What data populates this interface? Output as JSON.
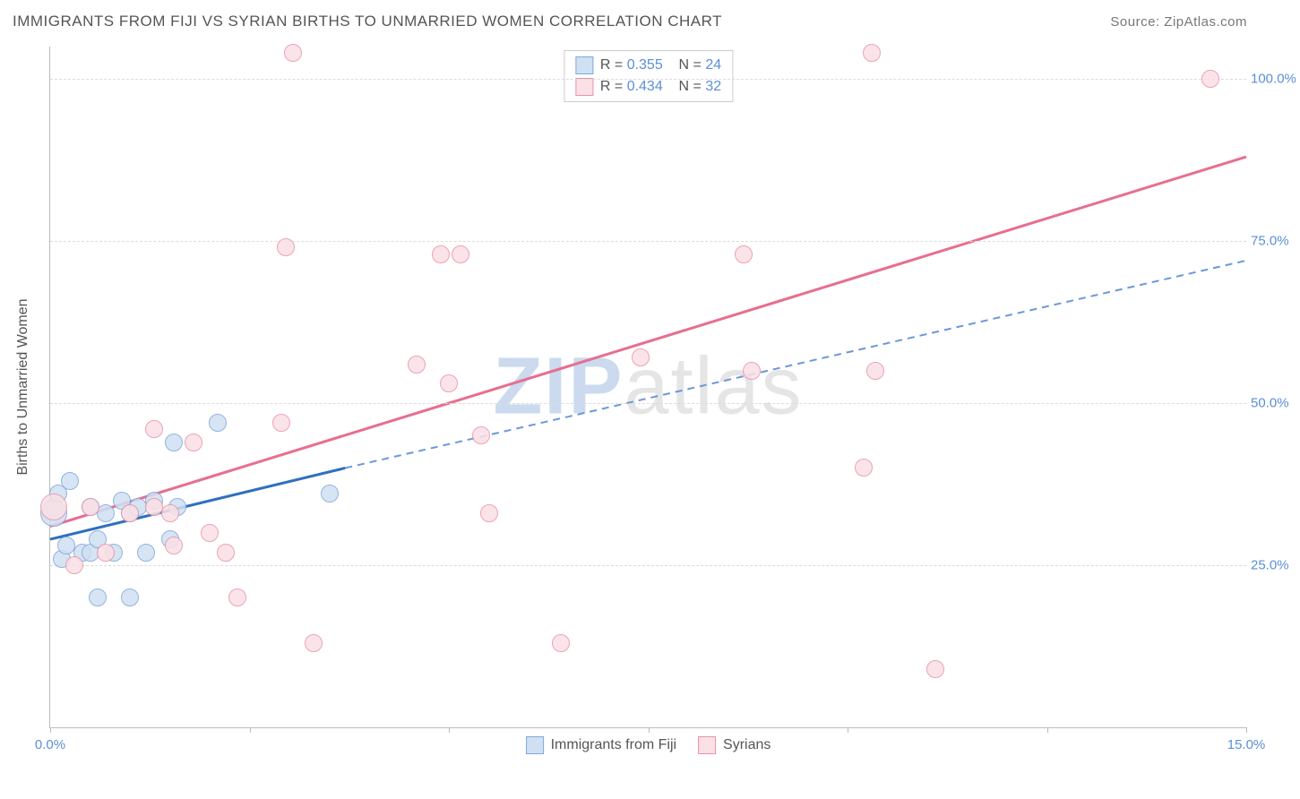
{
  "header": {
    "title": "IMMIGRANTS FROM FIJI VS SYRIAN BIRTHS TO UNMARRIED WOMEN CORRELATION CHART",
    "source_label": "Source:",
    "source_site": "ZipAtlas.com"
  },
  "watermark": {
    "part1": "ZIP",
    "part2": "atlas"
  },
  "axes": {
    "x": {
      "min": 0,
      "max": 15,
      "ticks": [
        0,
        2.5,
        5,
        7.5,
        10,
        12.5,
        15
      ],
      "labels": {
        "0": "0.0%",
        "15": "15.0%"
      }
    },
    "y": {
      "title": "Births to Unmarried Women",
      "min": 0,
      "max": 105,
      "gridlines": [
        25,
        50,
        75,
        100
      ],
      "labels": {
        "25": "25.0%",
        "50": "50.0%",
        "75": "75.0%",
        "100": "100.0%"
      }
    }
  },
  "series": [
    {
      "id": "fiji",
      "name": "Immigrants from Fiji",
      "R": "0.355",
      "N": "24",
      "marker_fill": "#cfe0f3",
      "marker_stroke": "#7fa8d9",
      "marker_radius": 9,
      "marker_opacity": 0.85,
      "trend": {
        "solid": {
          "x1": 0,
          "y1": 29,
          "x2": 3.7,
          "y2": 40,
          "color": "#2f6fc0",
          "width": 3
        },
        "dashed": {
          "x1": 3.7,
          "y1": 40,
          "x2": 15,
          "y2": 72,
          "color": "#6b99d6",
          "width": 2,
          "dash": "8 6"
        }
      },
      "points": [
        {
          "x": 0.05,
          "y": 34
        },
        {
          "x": 0.05,
          "y": 33,
          "r": 14
        },
        {
          "x": 0.1,
          "y": 36
        },
        {
          "x": 0.15,
          "y": 26
        },
        {
          "x": 0.2,
          "y": 28
        },
        {
          "x": 0.25,
          "y": 38
        },
        {
          "x": 0.4,
          "y": 27
        },
        {
          "x": 0.5,
          "y": 27
        },
        {
          "x": 0.5,
          "y": 34
        },
        {
          "x": 0.6,
          "y": 29
        },
        {
          "x": 0.6,
          "y": 20
        },
        {
          "x": 0.7,
          "y": 33
        },
        {
          "x": 0.8,
          "y": 27
        },
        {
          "x": 0.9,
          "y": 35
        },
        {
          "x": 1.0,
          "y": 33
        },
        {
          "x": 1.0,
          "y": 20
        },
        {
          "x": 1.1,
          "y": 34
        },
        {
          "x": 1.2,
          "y": 27
        },
        {
          "x": 1.3,
          "y": 35
        },
        {
          "x": 1.5,
          "y": 29
        },
        {
          "x": 1.55,
          "y": 44
        },
        {
          "x": 1.6,
          "y": 34
        },
        {
          "x": 2.1,
          "y": 47
        },
        {
          "x": 3.5,
          "y": 36
        }
      ]
    },
    {
      "id": "syrians",
      "name": "Syrians",
      "R": "0.434",
      "N": "32",
      "marker_fill": "#fbe0e6",
      "marker_stroke": "#e893a8",
      "marker_radius": 9,
      "marker_opacity": 0.85,
      "trend": {
        "solid": {
          "x1": 0,
          "y1": 31,
          "x2": 15,
          "y2": 88,
          "color": "#e76f8f",
          "width": 3
        }
      },
      "points": [
        {
          "x": 0.05,
          "y": 34,
          "r": 14
        },
        {
          "x": 0.3,
          "y": 25
        },
        {
          "x": 0.5,
          "y": 34
        },
        {
          "x": 0.7,
          "y": 27
        },
        {
          "x": 1.0,
          "y": 33
        },
        {
          "x": 1.3,
          "y": 34
        },
        {
          "x": 1.3,
          "y": 46
        },
        {
          "x": 1.5,
          "y": 33
        },
        {
          "x": 1.55,
          "y": 28
        },
        {
          "x": 1.8,
          "y": 44
        },
        {
          "x": 2.0,
          "y": 30
        },
        {
          "x": 2.2,
          "y": 27
        },
        {
          "x": 2.35,
          "y": 20
        },
        {
          "x": 2.9,
          "y": 47
        },
        {
          "x": 2.95,
          "y": 74
        },
        {
          "x": 3.05,
          "y": 104
        },
        {
          "x": 3.3,
          "y": 13
        },
        {
          "x": 4.6,
          "y": 56
        },
        {
          "x": 4.9,
          "y": 73
        },
        {
          "x": 5.0,
          "y": 53
        },
        {
          "x": 5.15,
          "y": 73
        },
        {
          "x": 5.4,
          "y": 45
        },
        {
          "x": 5.5,
          "y": 33
        },
        {
          "x": 6.4,
          "y": 13
        },
        {
          "x": 7.4,
          "y": 57
        },
        {
          "x": 8.8,
          "y": 55
        },
        {
          "x": 8.7,
          "y": 73
        },
        {
          "x": 10.2,
          "y": 40
        },
        {
          "x": 10.3,
          "y": 104
        },
        {
          "x": 10.35,
          "y": 55
        },
        {
          "x": 11.1,
          "y": 9
        },
        {
          "x": 14.55,
          "y": 100
        }
      ]
    }
  ],
  "legend_top": {
    "rows": [
      {
        "swatch_series": "fiji",
        "r_label": "R =",
        "n_label": "N ="
      },
      {
        "swatch_series": "syrians",
        "r_label": "R =",
        "n_label": "N ="
      }
    ]
  },
  "style": {
    "background": "#ffffff",
    "axis_color": "#bbbbbb",
    "grid_color": "#dcdcdc",
    "value_text_color": "#5b8fd6",
    "label_text_color": "#555555",
    "title_fontsize": 17,
    "axis_label_fontsize": 15,
    "legend_fontsize": 16
  }
}
